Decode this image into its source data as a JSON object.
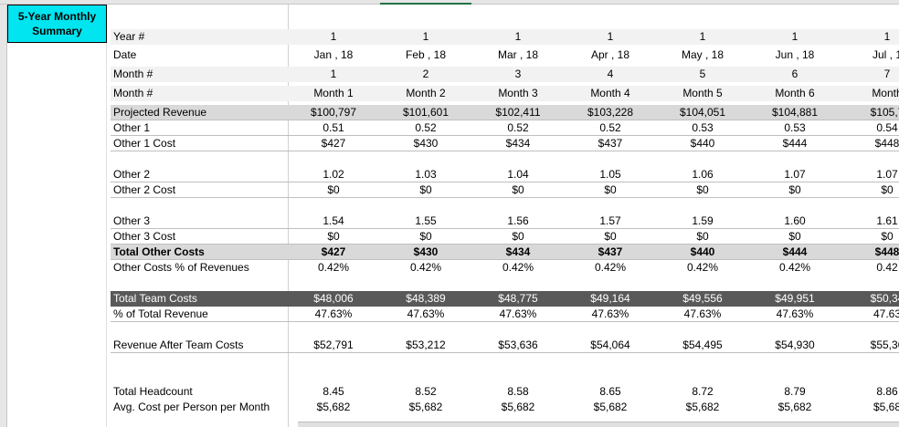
{
  "title": "5-Year Monthly Summary",
  "rows": [
    {
      "label": "Year #",
      "cells": [
        "1",
        "1",
        "1",
        "1",
        "1",
        "1",
        "1"
      ]
    },
    {
      "label": "Date",
      "cells": [
        "Jan , 18",
        "Feb , 18",
        "Mar , 18",
        "Apr , 18",
        "May , 18",
        "Jun , 18",
        "Jul , 1"
      ]
    },
    {
      "label": "Month #",
      "cells": [
        "1",
        "2",
        "3",
        "4",
        "5",
        "6",
        "7"
      ]
    },
    {
      "label": "Month #",
      "cells": [
        "Month 1",
        "Month 2",
        "Month 3",
        "Month 4",
        "Month 5",
        "Month 6",
        "Month"
      ]
    },
    {
      "label": "Projected Revenue",
      "cells": [
        "$100,797",
        "$101,601",
        "$102,411",
        "$103,228",
        "$104,051",
        "$104,881",
        "$105,7"
      ]
    },
    {
      "label": "Other 1",
      "cells": [
        "0.51",
        "0.52",
        "0.52",
        "0.52",
        "0.53",
        "0.53",
        "0.54"
      ]
    },
    {
      "label": "Other 1 Cost",
      "cells": [
        "$427",
        "$430",
        "$434",
        "$437",
        "$440",
        "$444",
        "$448"
      ]
    },
    {
      "label": "Other 2",
      "cells": [
        "1.02",
        "1.03",
        "1.04",
        "1.05",
        "1.06",
        "1.07",
        "1.07"
      ]
    },
    {
      "label": "Other 2 Cost",
      "cells": [
        "$0",
        "$0",
        "$0",
        "$0",
        "$0",
        "$0",
        "$0"
      ]
    },
    {
      "label": "Other 3",
      "cells": [
        "1.54",
        "1.55",
        "1.56",
        "1.57",
        "1.59",
        "1.60",
        "1.61"
      ]
    },
    {
      "label": "Other 3 Cost",
      "cells": [
        "$0",
        "$0",
        "$0",
        "$0",
        "$0",
        "$0",
        "$0"
      ]
    },
    {
      "label": "Total Other Costs",
      "cells": [
        "$427",
        "$430",
        "$434",
        "$437",
        "$440",
        "$444",
        "$448"
      ]
    },
    {
      "label": "Other Costs % of Revenues",
      "cells": [
        "0.42%",
        "0.42%",
        "0.42%",
        "0.42%",
        "0.42%",
        "0.42%",
        "0.42"
      ]
    },
    {
      "label": "Total Team Costs",
      "cells": [
        "$48,006",
        "$48,389",
        "$48,775",
        "$49,164",
        "$49,556",
        "$49,951",
        "$50,34"
      ]
    },
    {
      "label": "% of Total Revenue",
      "cells": [
        "47.63%",
        "47.63%",
        "47.63%",
        "47.63%",
        "47.63%",
        "47.63%",
        "47.63"
      ]
    },
    {
      "label": "Revenue After Team Costs",
      "cells": [
        "$52,791",
        "$53,212",
        "$53,636",
        "$54,064",
        "$54,495",
        "$54,930",
        "$55,36"
      ]
    },
    {
      "label": "Total Headcount",
      "cells": [
        "8.45",
        "8.52",
        "8.58",
        "8.65",
        "8.72",
        "8.79",
        "8.86"
      ]
    },
    {
      "label": "Avg. Cost per Person per Month",
      "cells": [
        "$5,682",
        "$5,682",
        "$5,682",
        "$5,682",
        "$5,682",
        "$5,682",
        "$5,68"
      ]
    }
  ]
}
